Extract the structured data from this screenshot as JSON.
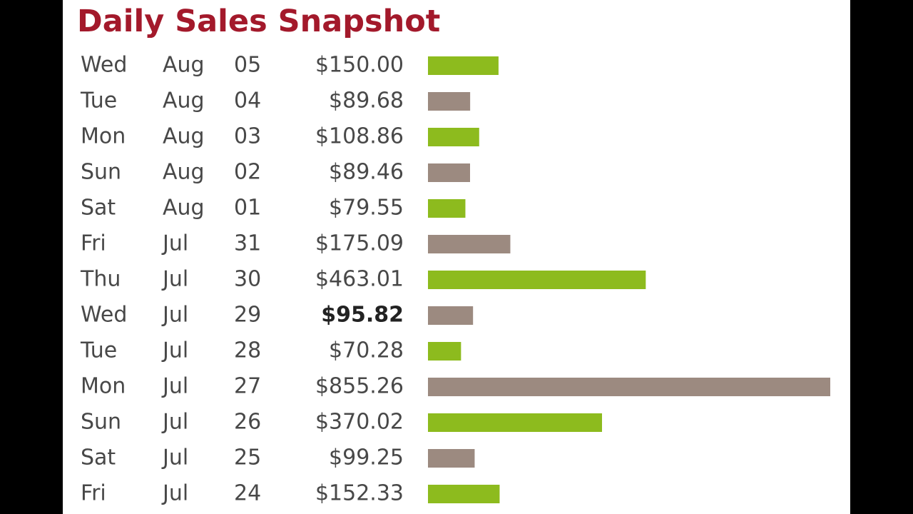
{
  "title": "Daily Sales Snapshot",
  "bar_colors": [
    "#8dbb1e",
    "#9c8a80"
  ],
  "rows": [
    {
      "weekday": "Wed",
      "month": "Aug",
      "day": "05",
      "amount": "$150.00",
      "value": 150.0
    },
    {
      "weekday": "Tue",
      "month": "Aug",
      "day": "04",
      "amount": "$89.68",
      "value": 89.68
    },
    {
      "weekday": "Mon",
      "month": "Aug",
      "day": "03",
      "amount": "$108.86",
      "value": 108.86
    },
    {
      "weekday": "Sun",
      "month": "Aug",
      "day": "02",
      "amount": "$89.46",
      "value": 89.46
    },
    {
      "weekday": "Sat",
      "month": "Aug",
      "day": "01",
      "amount": "$79.55",
      "value": 79.55
    },
    {
      "weekday": "Fri",
      "month": "Jul",
      "day": "31",
      "amount": "$175.09",
      "value": 175.09
    },
    {
      "weekday": "Thu",
      "month": "Jul",
      "day": "30",
      "amount": "$463.01",
      "value": 463.01
    },
    {
      "weekday": "Wed",
      "month": "Jul",
      "day": "29",
      "amount": "$95.82",
      "value": 95.82,
      "bold": true
    },
    {
      "weekday": "Tue",
      "month": "Jul",
      "day": "28",
      "amount": "$70.28",
      "value": 70.28
    },
    {
      "weekday": "Mon",
      "month": "Jul",
      "day": "27",
      "amount": "$855.26",
      "value": 855.26
    },
    {
      "weekday": "Sun",
      "month": "Jul",
      "day": "26",
      "amount": "$370.02",
      "value": 370.02
    },
    {
      "weekday": "Sat",
      "month": "Jul",
      "day": "25",
      "amount": "$99.25",
      "value": 99.25
    },
    {
      "weekday": "Fri",
      "month": "Jul",
      "day": "24",
      "amount": "$152.33",
      "value": 152.33
    }
  ]
}
